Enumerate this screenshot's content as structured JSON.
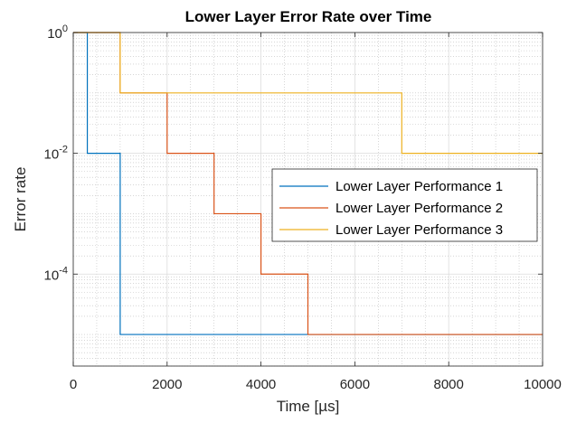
{
  "chart_data": {
    "type": "line",
    "title": "Lower Layer Error Rate over Time",
    "xlabel": "Time [µs]",
    "ylabel": "Error rate",
    "xlim": [
      0,
      10000
    ],
    "ylim": [
      3e-06,
      1
    ],
    "yscale": "log",
    "x_ticks": [
      0,
      2000,
      4000,
      6000,
      8000,
      10000
    ],
    "x_tick_labels": [
      "0",
      "2000",
      "4000",
      "6000",
      "8000",
      "10000"
    ],
    "y_ticks": [
      {
        "value": 1,
        "base": "10",
        "exp": "0"
      },
      {
        "value": 0.01,
        "base": "10",
        "exp": "-2"
      },
      {
        "value": 0.0001,
        "base": "10",
        "exp": "-4"
      }
    ],
    "grid": true,
    "minor_grid": true,
    "legend_position": "right",
    "series": [
      {
        "name": "Lower Layer Performance 1",
        "color": "#0072BD",
        "step": true,
        "x": [
          0,
          300,
          1000,
          10000
        ],
        "y": [
          1,
          0.01,
          1e-05,
          1e-05
        ]
      },
      {
        "name": "Lower Layer Performance 2",
        "color": "#D95319",
        "step": true,
        "x": [
          0,
          1000,
          2000,
          3000,
          4000,
          5000,
          10000
        ],
        "y": [
          1,
          0.1,
          0.01,
          0.001,
          0.0001,
          1e-05,
          1e-05
        ]
      },
      {
        "name": "Lower Layer Performance 3",
        "color": "#EDB120",
        "step": true,
        "x": [
          0,
          1000,
          7000,
          10000
        ],
        "y": [
          1,
          0.1,
          0.01,
          0.01
        ]
      }
    ]
  }
}
